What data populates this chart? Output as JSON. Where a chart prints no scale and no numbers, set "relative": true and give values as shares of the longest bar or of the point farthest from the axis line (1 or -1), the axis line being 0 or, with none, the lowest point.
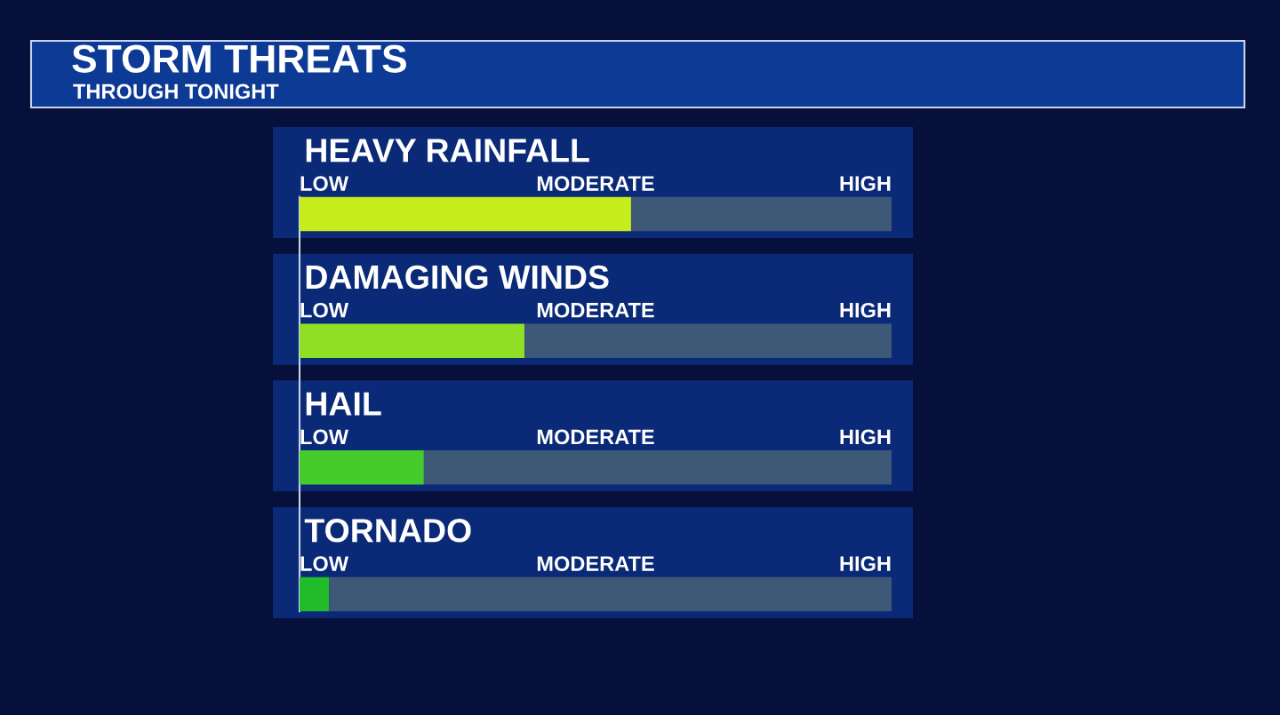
{
  "chart_data": {
    "type": "bar",
    "orientation": "horizontal",
    "stacked": true,
    "relative": true,
    "title": "STORM THREATS",
    "subtitle": "THROUGH TONIGHT",
    "categories": [
      "HEAVY RAINFALL",
      "DAMAGING WINDS",
      "HAIL",
      "TORNADO"
    ],
    "annotations": [
      "LOW",
      "MODERATE",
      "HIGH",
      "LOW",
      "MODERATE",
      "HIGH",
      "LOW",
      "MODERATE",
      "HIGH",
      "LOW",
      "MODERATE",
      "HIGH"
    ],
    "series": [
      {
        "colors": [
          "#c6ec1c",
          "#8fe024",
          "#45cc2c",
          "#22bb2a"
        ],
        "values": [
          0.56,
          0.38,
          0.21,
          0.05
        ]
      },
      {
        "color": "#3e5878",
        "values": [
          0.44,
          0.62,
          0.79,
          0.95
        ]
      }
    ]
  }
}
